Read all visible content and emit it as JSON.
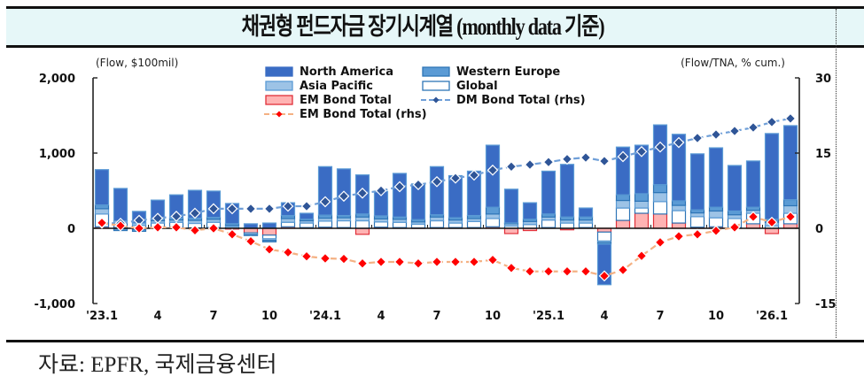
{
  "title": "채권형 펀드자금 장기시계열 (monthly data 기준)",
  "source": "자료: EPFR,  국제금융센터",
  "colors": {
    "north_america": "#3a6cc4",
    "western_europe": "#5b9bd5",
    "asia_pacific": "#9dc3e6",
    "global": "#ffffff",
    "global_border": "#2e75b6",
    "em_bond": "#ffb3b3",
    "em_bond_border": "#e0303a",
    "dm_line": "#2f5597",
    "dm_line_dash": "#6f9fd8",
    "em_line": "#ff0000",
    "em_line_dash": "#f4b183"
  },
  "chart_data": {
    "type": "bar",
    "subtype": "stacked bar + line (dual axis)",
    "title": "채권형 펀드자금 장기시계열 (monthly data 기준)",
    "ylabel": "(Flow, $100mil)",
    "y2label": "(Flow/TNA, % cum.)",
    "ylim": [
      -1000,
      2000
    ],
    "y2lim": [
      -15,
      30
    ],
    "yticks": [
      2000,
      1000,
      0,
      -1000
    ],
    "ytick_labels": [
      "2,000",
      "1,000",
      "0",
      "-1,000"
    ],
    "y2ticks": [
      30,
      15,
      0,
      -15
    ],
    "y2tick_labels": [
      "30",
      "15",
      "0",
      "-15"
    ],
    "xtick_labels": [
      {
        "index": 0,
        "label": "'23.1"
      },
      {
        "index": 3,
        "label": "4"
      },
      {
        "index": 6,
        "label": "7"
      },
      {
        "index": 9,
        "label": "10"
      },
      {
        "index": 12,
        "label": "'24.1"
      },
      {
        "index": 15,
        "label": "4"
      },
      {
        "index": 18,
        "label": "7"
      },
      {
        "index": 21,
        "label": "10"
      },
      {
        "index": 24,
        "label": "'25.1"
      },
      {
        "index": 27,
        "label": "4"
      },
      {
        "index": 30,
        "label": "7"
      },
      {
        "index": 33,
        "label": "10"
      },
      {
        "index": 36,
        "label": "'26.1"
      }
    ],
    "categories": [
      "23.01",
      "23.02",
      "23.03",
      "23.04",
      "23.05",
      "23.06",
      "23.07",
      "23.08",
      "23.09",
      "23.10",
      "23.11",
      "23.12",
      "24.01",
      "24.02",
      "24.03",
      "24.04",
      "24.05",
      "24.06",
      "24.07",
      "24.08",
      "24.09",
      "24.10",
      "24.11",
      "24.12",
      "25.01",
      "25.02",
      "25.03",
      "25.04",
      "25.05",
      "25.06",
      "25.07",
      "25.08",
      "25.09",
      "25.10",
      "25.11",
      "25.12",
      "26.01",
      "26.02"
    ],
    "legend_position": "top-center",
    "grid": false,
    "series": [
      {
        "name": "EM Bond Total",
        "kind": "bar",
        "axis": "left",
        "values": [
          20,
          10,
          -15,
          10,
          10,
          5,
          10,
          -10,
          -60,
          -90,
          20,
          10,
          15,
          10,
          -80,
          15,
          10,
          5,
          10,
          10,
          10,
          20,
          -70,
          -30,
          10,
          -20,
          10,
          -50,
          105,
          200,
          190,
          70,
          15,
          20,
          10,
          60,
          -70,
          60
        ]
      },
      {
        "name": "Global",
        "kind": "bar",
        "axis": "left",
        "values": [
          170,
          60,
          40,
          60,
          70,
          60,
          70,
          20,
          -20,
          -50,
          60,
          60,
          80,
          90,
          100,
          70,
          70,
          50,
          90,
          60,
          80,
          110,
          30,
          50,
          100,
          70,
          60,
          -120,
          165,
          70,
          165,
          165,
          140,
          120,
          120,
          140,
          30,
          140
        ]
      },
      {
        "name": "Asia Pacific",
        "kind": "bar",
        "axis": "left",
        "values": [
          70,
          30,
          30,
          30,
          30,
          40,
          40,
          20,
          -10,
          -20,
          50,
          30,
          40,
          40,
          50,
          40,
          40,
          30,
          50,
          40,
          40,
          60,
          30,
          40,
          40,
          40,
          40,
          -20,
          100,
          90,
          120,
          70,
          50,
          90,
          50,
          40,
          50,
          100
        ]
      },
      {
        "name": "Western Europe",
        "kind": "bar",
        "axis": "left",
        "values": [
          50,
          -30,
          -25,
          25,
          25,
          30,
          25,
          20,
          -5,
          -20,
          40,
          20,
          40,
          30,
          40,
          40,
          30,
          30,
          30,
          30,
          40,
          90,
          10,
          30,
          40,
          40,
          40,
          -20,
          75,
          100,
          105,
          60,
          40,
          50,
          50,
          40,
          40,
          80
        ]
      },
      {
        "name": "North America",
        "kind": "bar",
        "axis": "left",
        "values": [
          470,
          430,
          155,
          250,
          310,
          370,
          350,
          270,
          60,
          70,
          170,
          80,
          645,
          620,
          520,
          325,
          580,
          475,
          640,
          560,
          590,
          825,
          450,
          220,
          570,
          700,
          120,
          -540,
          635,
          645,
          795,
          885,
          745,
          790,
          605,
          615,
          1140,
          985
        ]
      },
      {
        "name": "DM Bond Total (rhs)",
        "kind": "line",
        "axis": "right",
        "values": [
          1.0,
          1.0,
          1.6,
          2.0,
          2.4,
          3.0,
          3.9,
          3.9,
          3.9,
          3.9,
          4.4,
          4.4,
          5.3,
          6.4,
          7.0,
          7.5,
          8.3,
          8.7,
          9.3,
          10.0,
          10.6,
          11.6,
          12.3,
          12.7,
          13.2,
          13.8,
          14.1,
          13.4,
          14.3,
          15.3,
          16.2,
          17.1,
          18.0,
          18.7,
          19.4,
          20.1,
          21.2,
          21.9
        ]
      },
      {
        "name": "EM Bond Total (rhs)",
        "kind": "line",
        "axis": "right",
        "values": [
          1.1,
          0.5,
          0.0,
          0.2,
          0.2,
          -0.4,
          0.0,
          -1.2,
          -2.6,
          -4.2,
          -4.8,
          -5.6,
          -6.0,
          -6.1,
          -7.0,
          -6.7,
          -6.7,
          -7.0,
          -6.7,
          -6.7,
          -6.7,
          -6.3,
          -7.9,
          -8.6,
          -8.6,
          -8.6,
          -8.6,
          -9.5,
          -8.3,
          -5.5,
          -2.8,
          -1.6,
          -1.2,
          -0.5,
          0.2,
          2.3,
          1.2,
          2.3
        ]
      }
    ],
    "bar_totals_approx": [
      765,
      530,
      225,
      375,
      445,
      505,
      495,
      330,
      60,
      60,
      340,
      200,
      820,
      790,
      730,
      470,
      730,
      590,
      820,
      700,
      720,
      1105,
      520,
      340,
      750,
      850,
      270,
      -750,
      1080,
      1105,
      1375,
      1250,
      990,
      1070,
      835,
      895,
      1260,
      1305
    ],
    "legend": [
      {
        "label": "North America",
        "type": "bar"
      },
      {
        "label": "Western Europe",
        "type": "bar"
      },
      {
        "label": "Asia Pacific",
        "type": "bar"
      },
      {
        "label": "Global",
        "type": "bar"
      },
      {
        "label": "EM Bond Total",
        "type": "bar"
      },
      {
        "label": "DM Bond Total (rhs)",
        "type": "line"
      },
      {
        "label": "EM Bond Total (rhs)",
        "type": "line"
      }
    ]
  }
}
